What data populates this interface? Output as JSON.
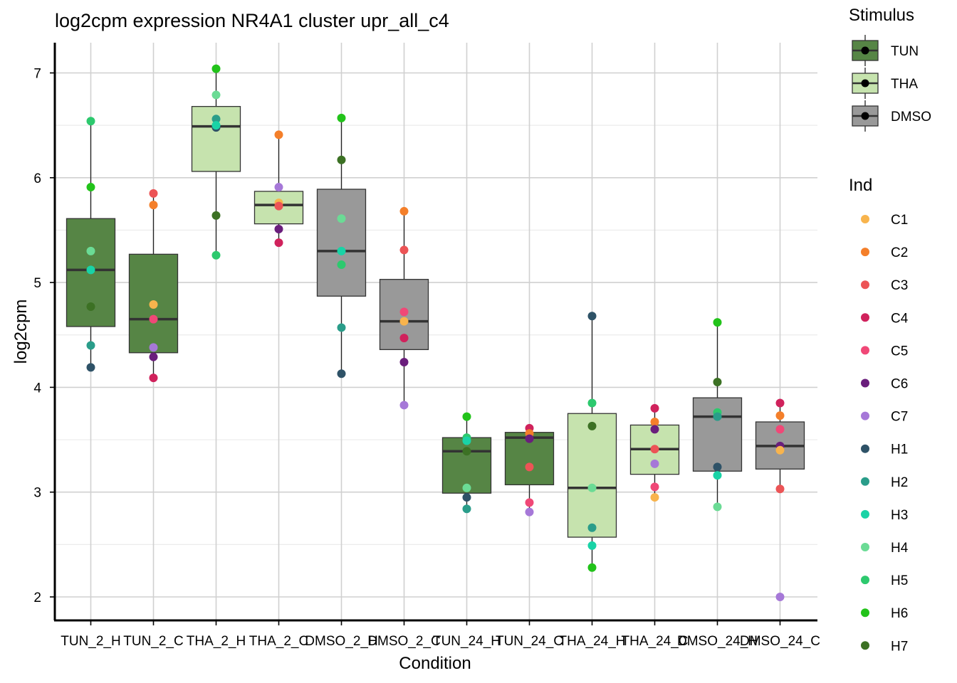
{
  "chart_data": {
    "type": "boxplot",
    "title": "log2cpm expression NR4A1 cluster upr_all_c4",
    "xlabel": "Condition",
    "ylabel": "log2cpm",
    "ylim": [
      1.8,
      7.3
    ],
    "yticks": [
      2,
      3,
      4,
      5,
      6,
      7
    ],
    "grid": true,
    "legend_position": "right",
    "categories": [
      "TUN_2_H",
      "TUN_2_C",
      "THA_2_H",
      "THA_2_C",
      "DMSO_2_H",
      "DMSO_2_C",
      "TUN_24_H",
      "TUN_24_C",
      "THA_24_H",
      "THA_24_C",
      "DMSO_24_H",
      "DMSO_24_C"
    ],
    "stimulus_legend": {
      "title": "Stimulus",
      "items": [
        {
          "name": "TUN",
          "color": "#568545"
        },
        {
          "name": "THA",
          "color": "#C6E3AE"
        },
        {
          "name": "DMSO",
          "color": "#999999"
        }
      ]
    },
    "ind_legend": {
      "title": "Ind",
      "items": [
        {
          "name": "C1",
          "color": "#F8B44D"
        },
        {
          "name": "C2",
          "color": "#F47F2A"
        },
        {
          "name": "C3",
          "color": "#EC5456"
        },
        {
          "name": "C4",
          "color": "#D0225C"
        },
        {
          "name": "C5",
          "color": "#F04877"
        },
        {
          "name": "C6",
          "color": "#6A1E7C"
        },
        {
          "name": "C7",
          "color": "#A678D8"
        },
        {
          "name": "H1",
          "color": "#2E5267"
        },
        {
          "name": "H2",
          "color": "#2A9D8A"
        },
        {
          "name": "H3",
          "color": "#19D3A6"
        },
        {
          "name": "H4",
          "color": "#6BDB95"
        },
        {
          "name": "H5",
          "color": "#2DC96E"
        },
        {
          "name": "H6",
          "color": "#22C31A"
        },
        {
          "name": "H7",
          "color": "#3C7124"
        }
      ]
    },
    "boxes": [
      {
        "category": "TUN_2_H",
        "stimulus": "TUN",
        "whisker_low": 4.19,
        "q1": 4.58,
        "median": 5.12,
        "q3": 5.61,
        "whisker_high": 6.54,
        "points": [
          {
            "ind": "H6",
            "value": 5.91
          },
          {
            "ind": "H4",
            "value": 5.3
          },
          {
            "ind": "H3",
            "value": 5.12
          },
          {
            "ind": "H7",
            "value": 4.77
          },
          {
            "ind": "H2",
            "value": 4.4
          },
          {
            "ind": "H1",
            "value": 4.19
          },
          {
            "ind": "H5",
            "value": 6.54
          }
        ]
      },
      {
        "category": "TUN_2_C",
        "stimulus": "TUN",
        "whisker_low": 4.09,
        "q1": 4.33,
        "median": 4.65,
        "q3": 5.27,
        "whisker_high": 5.85,
        "points": [
          {
            "ind": "C3",
            "value": 5.85
          },
          {
            "ind": "C2",
            "value": 5.74
          },
          {
            "ind": "C1",
            "value": 4.79
          },
          {
            "ind": "C5",
            "value": 4.65
          },
          {
            "ind": "C7",
            "value": 4.38
          },
          {
            "ind": "C6",
            "value": 4.29
          },
          {
            "ind": "C4",
            "value": 4.09
          }
        ]
      },
      {
        "category": "THA_2_H",
        "stimulus": "THA",
        "whisker_low": 5.26,
        "q1": 6.06,
        "median": 6.49,
        "q3": 6.68,
        "whisker_high": 7.04,
        "points": [
          {
            "ind": "H6",
            "value": 7.04
          },
          {
            "ind": "H4",
            "value": 6.79
          },
          {
            "ind": "H2",
            "value": 6.56
          },
          {
            "ind": "H1",
            "value": 6.48
          },
          {
            "ind": "H3",
            "value": 6.5
          },
          {
            "ind": "H7",
            "value": 5.64
          },
          {
            "ind": "H5",
            "value": 5.26
          }
        ]
      },
      {
        "category": "THA_2_C",
        "stimulus": "THA",
        "whisker_low": 5.38,
        "q1": 5.56,
        "median": 5.74,
        "q3": 5.87,
        "whisker_high": 6.41,
        "points": [
          {
            "ind": "C2",
            "value": 6.41
          },
          {
            "ind": "C7",
            "value": 5.91
          },
          {
            "ind": "C1",
            "value": 5.76
          },
          {
            "ind": "C3",
            "value": 5.73
          },
          {
            "ind": "C6",
            "value": 5.51
          },
          {
            "ind": "C4",
            "value": 5.38
          }
        ]
      },
      {
        "category": "DMSO_2_H",
        "stimulus": "DMSO",
        "whisker_low": 4.13,
        "q1": 4.87,
        "median": 5.3,
        "q3": 5.89,
        "whisker_high": 6.57,
        "points": [
          {
            "ind": "H6",
            "value": 6.57
          },
          {
            "ind": "H7",
            "value": 6.17
          },
          {
            "ind": "H4",
            "value": 5.61
          },
          {
            "ind": "H3",
            "value": 5.3
          },
          {
            "ind": "H5",
            "value": 5.17
          },
          {
            "ind": "H2",
            "value": 4.57
          },
          {
            "ind": "H1",
            "value": 4.13
          }
        ]
      },
      {
        "category": "DMSO_2_C",
        "stimulus": "DMSO",
        "whisker_low": 3.83,
        "q1": 4.36,
        "median": 4.63,
        "q3": 5.03,
        "whisker_high": 5.68,
        "points": [
          {
            "ind": "C2",
            "value": 5.68
          },
          {
            "ind": "C3",
            "value": 5.31
          },
          {
            "ind": "C5",
            "value": 4.72
          },
          {
            "ind": "C1",
            "value": 4.63
          },
          {
            "ind": "C4",
            "value": 4.47
          },
          {
            "ind": "C6",
            "value": 4.24
          },
          {
            "ind": "C7",
            "value": 3.83
          }
        ]
      },
      {
        "category": "TUN_24_H",
        "stimulus": "TUN",
        "whisker_low": 2.84,
        "q1": 2.99,
        "median": 3.39,
        "q3": 3.52,
        "whisker_high": 3.72,
        "points": [
          {
            "ind": "H6",
            "value": 3.72
          },
          {
            "ind": "H5",
            "value": 3.52
          },
          {
            "ind": "H3",
            "value": 3.49
          },
          {
            "ind": "H7",
            "value": 3.39
          },
          {
            "ind": "H4",
            "value": 3.04
          },
          {
            "ind": "H1",
            "value": 2.95
          },
          {
            "ind": "H2",
            "value": 2.84
          }
        ]
      },
      {
        "category": "TUN_24_C",
        "stimulus": "TUN",
        "whisker_low": 2.81,
        "q1": 3.07,
        "median": 3.52,
        "q3": 3.57,
        "whisker_high": 3.61,
        "points": [
          {
            "ind": "C4",
            "value": 3.61
          },
          {
            "ind": "C2",
            "value": 3.56
          },
          {
            "ind": "C6",
            "value": 3.51
          },
          {
            "ind": "C3",
            "value": 3.24
          },
          {
            "ind": "C5",
            "value": 2.9
          },
          {
            "ind": "C7",
            "value": 2.81
          }
        ]
      },
      {
        "category": "THA_24_H",
        "stimulus": "THA",
        "whisker_low": 2.28,
        "q1": 2.57,
        "median": 3.04,
        "q3": 3.75,
        "whisker_high": 4.68,
        "points": [
          {
            "ind": "H1",
            "value": 4.68
          },
          {
            "ind": "H5",
            "value": 3.85
          },
          {
            "ind": "H7",
            "value": 3.63
          },
          {
            "ind": "H4",
            "value": 3.04
          },
          {
            "ind": "H2",
            "value": 2.66
          },
          {
            "ind": "H3",
            "value": 2.49
          },
          {
            "ind": "H6",
            "value": 2.28
          }
        ]
      },
      {
        "category": "THA_24_C",
        "stimulus": "THA",
        "whisker_low": 2.95,
        "q1": 3.17,
        "median": 3.41,
        "q3": 3.64,
        "whisker_high": 3.8,
        "points": [
          {
            "ind": "C4",
            "value": 3.8
          },
          {
            "ind": "C2",
            "value": 3.67
          },
          {
            "ind": "C6",
            "value": 3.6
          },
          {
            "ind": "C3",
            "value": 3.41
          },
          {
            "ind": "C7",
            "value": 3.27
          },
          {
            "ind": "C5",
            "value": 3.05
          },
          {
            "ind": "C1",
            "value": 2.95
          }
        ]
      },
      {
        "category": "DMSO_24_H",
        "stimulus": "DMSO",
        "whisker_low": 2.86,
        "q1": 3.2,
        "median": 3.72,
        "q3": 3.9,
        "whisker_high": 4.62,
        "points": [
          {
            "ind": "H6",
            "value": 4.62
          },
          {
            "ind": "H7",
            "value": 4.05
          },
          {
            "ind": "H5",
            "value": 3.76
          },
          {
            "ind": "H2",
            "value": 3.72
          },
          {
            "ind": "H1",
            "value": 3.24
          },
          {
            "ind": "H3",
            "value": 3.16
          },
          {
            "ind": "H4",
            "value": 2.86
          }
        ]
      },
      {
        "category": "DMSO_24_C",
        "stimulus": "DMSO",
        "whisker_low": 3.03,
        "q1": 3.22,
        "median": 3.44,
        "q3": 3.67,
        "whisker_high": 3.85,
        "points": [
          {
            "ind": "C4",
            "value": 3.85
          },
          {
            "ind": "C2",
            "value": 3.73
          },
          {
            "ind": "C5",
            "value": 3.6
          },
          {
            "ind": "C6",
            "value": 3.44
          },
          {
            "ind": "C1",
            "value": 3.4
          },
          {
            "ind": "C3",
            "value": 3.03
          },
          {
            "ind": "C7",
            "value": 2.0
          }
        ]
      }
    ]
  }
}
